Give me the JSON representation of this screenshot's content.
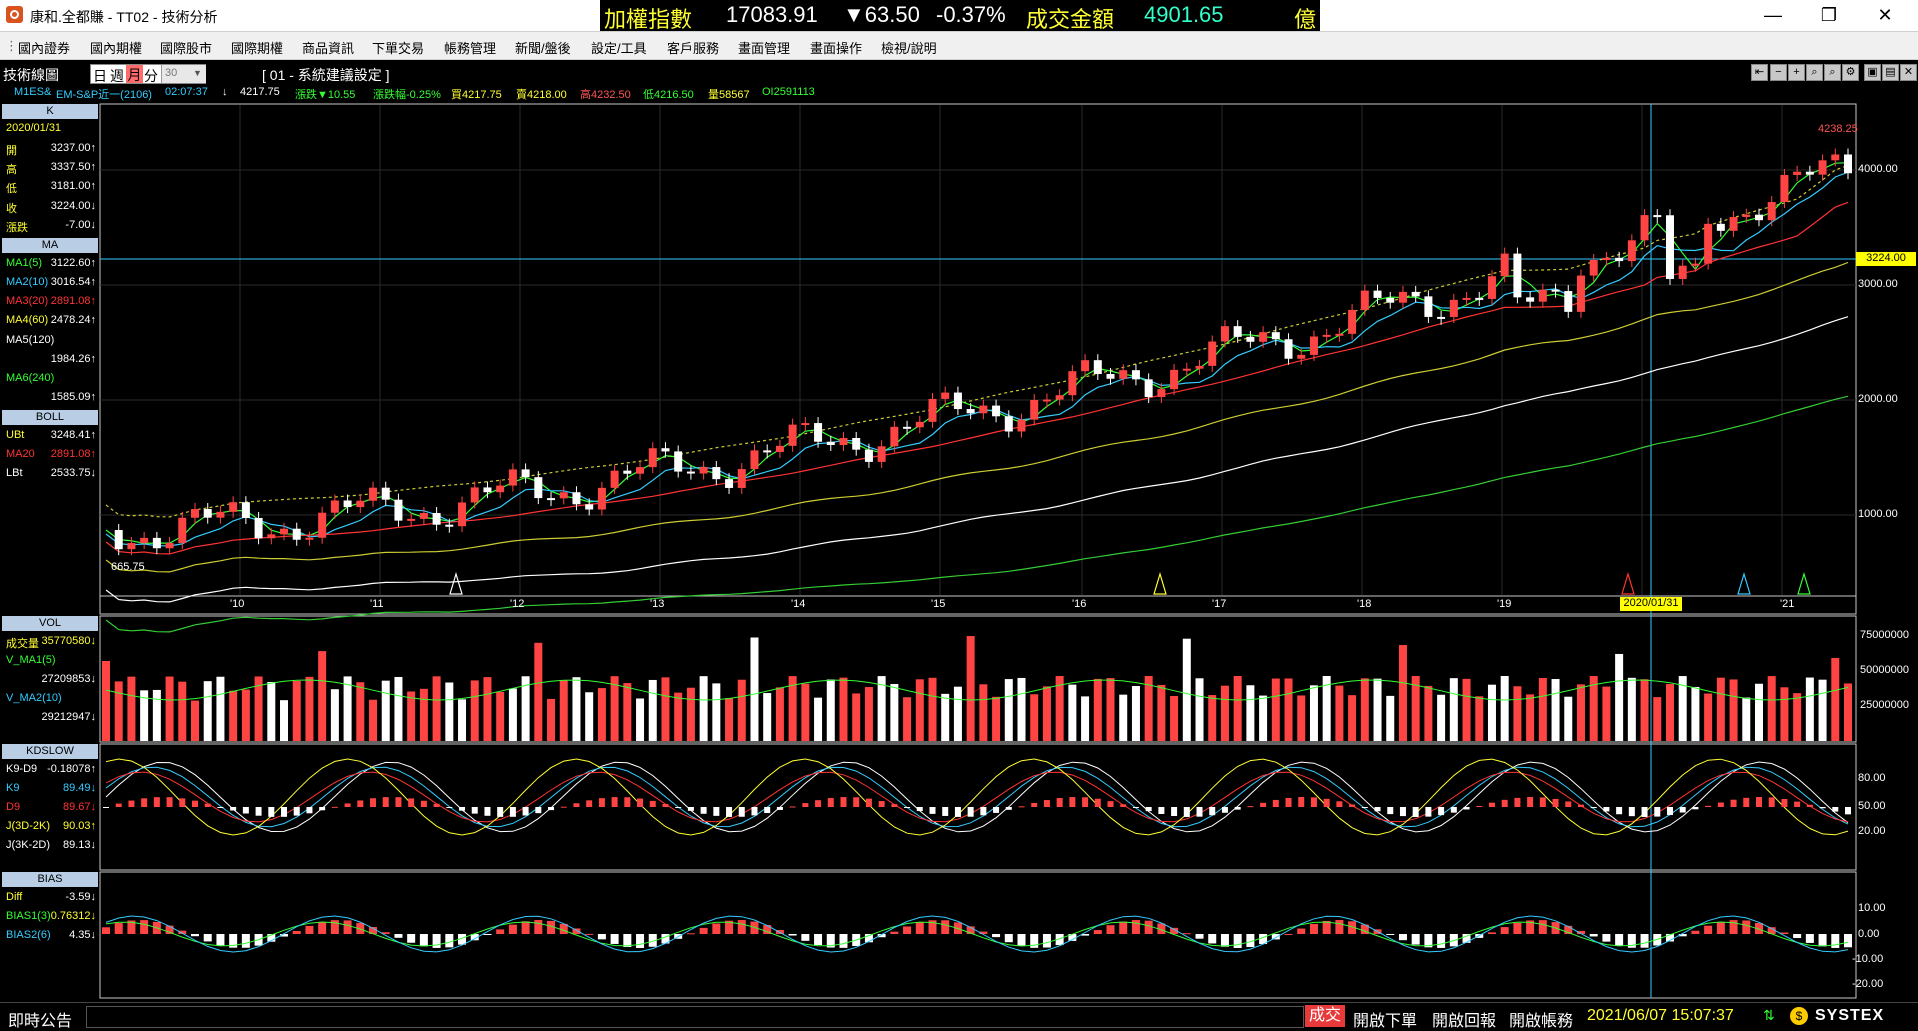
{
  "window": {
    "title": "康和.全都賺 - TT02 - 技術分析"
  },
  "ticker": {
    "name": "加權指數",
    "price": "17083.91",
    "change": "▼63.50",
    "pct": "-0.37%",
    "amount_label": "成交金額",
    "amount": "4901.65",
    "unit": "億"
  },
  "menu": [
    "國內證券",
    "國內期權",
    "國際股市",
    "國際期權",
    "商品資訊",
    "下單交易",
    "帳務管理",
    "新聞/盤後",
    "設定/工具",
    "客戶服務",
    "畫面管理",
    "畫面操作",
    "檢視/說明"
  ],
  "toolbar": {
    "panel_title": "技術線圖",
    "period_day": "日",
    "period_week": "週",
    "period_month": "月",
    "period_min": "分",
    "minutes": "30",
    "setting": "[ 01 - 系統建議設定 ]"
  },
  "info": {
    "symbol": "M1ES&",
    "name": "EM-S&P近一(2106)",
    "time": "02:07:37",
    "last": "4217.75",
    "chg": "漲跌▼10.55",
    "pct": "漲跌幅-0.25%",
    "bid": "買4217.75",
    "ask": "賣4218.00",
    "high": "高4232.50",
    "low": "低4216.50",
    "vol": "量58567",
    "oi": "OI2591113"
  },
  "k_panel": {
    "header": "K",
    "date": "2020/01/31",
    "rows": [
      {
        "label": "開",
        "value": "3237.00↑"
      },
      {
        "label": "高",
        "value": "3337.50↑"
      },
      {
        "label": "低",
        "value": "3181.00↑"
      },
      {
        "label": "收",
        "value": "3224.00↓"
      },
      {
        "label": "漲跌",
        "value": "-7.00↓"
      }
    ]
  },
  "ma_panel": {
    "header": "MA",
    "rows": [
      {
        "label": "MA1(5)",
        "value": "3122.60↑",
        "color": "#33ff33"
      },
      {
        "label": "MA2(10)",
        "value": "3016.54↑",
        "color": "#33ccff"
      },
      {
        "label": "MA3(20)",
        "value": "2891.08↑",
        "color": "#ff3333"
      },
      {
        "label": "MA4(60)",
        "value": "2478.24↑",
        "color": "#ffff33"
      },
      {
        "label": "MA5(120)",
        "value": "",
        "color": "#ffffff"
      },
      {
        "label": "",
        "value": "1984.26↑",
        "color": "#ffffff"
      },
      {
        "label": "MA6(240)",
        "value": "",
        "color": "#33ff33"
      },
      {
        "label": "",
        "value": "1585.09↑",
        "color": "#ffffff"
      }
    ]
  },
  "boll_panel": {
    "header": "BOLL",
    "rows": [
      {
        "label": "UBt",
        "value": "3248.41↑",
        "color": "#ffff33"
      },
      {
        "label": "MA20",
        "value": "2891.08↑",
        "color": "#ff3333"
      },
      {
        "label": "LBt",
        "value": "2533.75↓",
        "color": "#ffffff"
      }
    ]
  },
  "vol_panel": {
    "header": "VOL",
    "rows": [
      {
        "label": "成交量",
        "value": "35770580↓",
        "color": "#ffff33"
      },
      {
        "label": "V_MA1(5)",
        "value": "",
        "color": "#33ff33"
      },
      {
        "label": "",
        "value": "27209853↓",
        "color": "#ffffff"
      },
      {
        "label": "V_MA2(10)",
        "value": "",
        "color": "#33ccff"
      },
      {
        "label": "",
        "value": "29212947↓",
        "color": "#ffffff"
      }
    ]
  },
  "kd_panel": {
    "header": "KDSLOW",
    "rows": [
      {
        "label": "K9-D9",
        "value": "-0.18078↑",
        "color": "#ffffff"
      },
      {
        "label": "K9",
        "value": "89.49↓",
        "color": "#33ccff"
      },
      {
        "label": "D9",
        "value": "89.67↓",
        "color": "#ff3333"
      },
      {
        "label": "J(3D-2K)",
        "value": "90.03↑",
        "color": "#ffff33"
      },
      {
        "label": "J(3K-2D)",
        "value": "89.13↓",
        "color": "#ffffff"
      }
    ]
  },
  "bias_panel": {
    "header": "BIAS",
    "rows": [
      {
        "label": "Diff",
        "value": "-3.59↓",
        "color": "#ffff33"
      },
      {
        "label": "BIAS1(3)",
        "value": "0.76312↓",
        "color": "#33ff33"
      },
      {
        "label": "BIAS2(6)",
        "value": "4.35↓",
        "color": "#33ccff"
      }
    ]
  },
  "main_axis": {
    "ticks": [
      "4000.00",
      "3000.00",
      "2000.00",
      "1000.00"
    ],
    "current": "3224.00",
    "high_label": "4238.25",
    "low_label": "665.75"
  },
  "x_axis": {
    "labels": [
      "'10",
      "'11",
      "'12",
      "'13",
      "'14",
      "'15",
      "'16",
      "'17",
      "'18",
      "'19",
      "2020/01/31",
      "'21"
    ]
  },
  "vol_axis": {
    "ticks": [
      "75000000",
      "50000000",
      "25000000"
    ]
  },
  "kd_axis": {
    "ticks": [
      "80.00",
      "50.00",
      "20.00"
    ]
  },
  "bias_axis": {
    "ticks": [
      "10.00",
      "0.00",
      "-10.00",
      "-20.00"
    ]
  },
  "status": {
    "title": "即時公告",
    "buttons": [
      "成交",
      "開啟下單",
      "開啟回報",
      "開啟帳務"
    ],
    "datetime": "2021/06/07 15:07:37",
    "brand": "SYSTEX"
  }
}
